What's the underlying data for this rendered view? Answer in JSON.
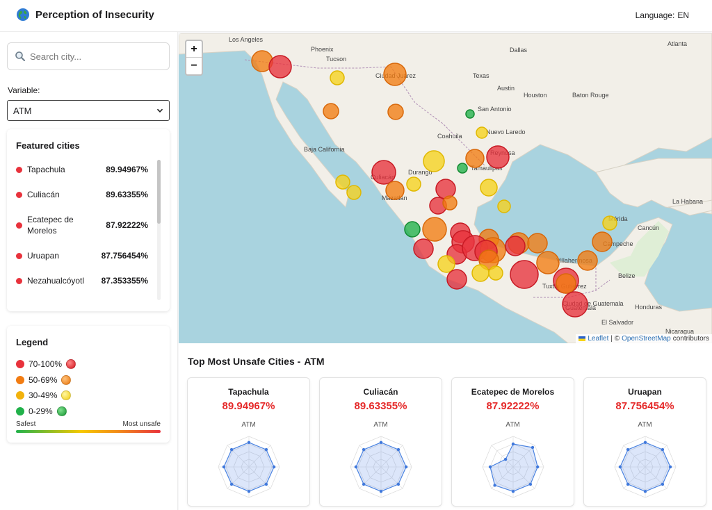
{
  "header": {
    "title": "Perception of Insecurity",
    "language_label": "Language:",
    "language_value": "EN"
  },
  "sidebar": {
    "search_placeholder": "Search city...",
    "variable_label": "Variable:",
    "variable_value": "ATM",
    "featured_title": "Featured cities",
    "featured": [
      {
        "name": "Tapachula",
        "value": "89.94967%",
        "color": "#e8323c"
      },
      {
        "name": "Culiacán",
        "value": "89.63355%",
        "color": "#e8323c"
      },
      {
        "name": "Ecatepec de Morelos",
        "value": "87.92222%",
        "color": "#e8323c"
      },
      {
        "name": "Uruapan",
        "value": "87.756454%",
        "color": "#e8323c"
      },
      {
        "name": "Nezahualcóyotl",
        "value": "87.353355%",
        "color": "#e8323c"
      }
    ],
    "legend_title": "Legend",
    "legend": [
      {
        "label": "70-100%",
        "color": "#e8323c"
      },
      {
        "label": "50-69%",
        "color": "#f27c12"
      },
      {
        "label": "30-49%",
        "color": "#f2b20c"
      },
      {
        "label": "0-29%",
        "color": "#21b14a"
      }
    ],
    "gradient_low": "Safest",
    "gradient_high": "Most unsafe"
  },
  "map": {
    "zoom_in": "+",
    "zoom_out": "−",
    "attribution_leaflet": "Leaflet",
    "attribution_sep": "| ©",
    "attribution_osm": "OpenStreetMap",
    "attribution_contributors": "contributors",
    "labels": [
      {
        "text": "Los Angeles"
      },
      {
        "text": "Phoenix"
      },
      {
        "text": "Tucson"
      },
      {
        "text": "Dallas"
      },
      {
        "text": "Atlanta"
      },
      {
        "text": "Ciudad Juárez"
      },
      {
        "text": "Austin"
      },
      {
        "text": "Houston"
      },
      {
        "text": "Baton Rouge"
      },
      {
        "text": "San Antonio"
      },
      {
        "text": "Nuevo Laredo"
      },
      {
        "text": "Reynosa"
      },
      {
        "text": "Culiacán"
      },
      {
        "text": "Mérida"
      },
      {
        "text": "Cancún"
      },
      {
        "text": "Campeche"
      },
      {
        "text": "Villahermosa"
      },
      {
        "text": "Belize"
      },
      {
        "text": "Guatemala"
      },
      {
        "text": "Honduras"
      },
      {
        "text": "El Salvador"
      },
      {
        "text": "La Habana"
      },
      {
        "text": "Texas"
      },
      {
        "text": "Coahuila"
      },
      {
        "text": "Tamaulipas"
      },
      {
        "text": "Durango"
      },
      {
        "text": "Baja California"
      },
      {
        "text": "Tuxtla Gutiérrez"
      },
      {
        "text": "Ciudad de Guatemala"
      },
      {
        "text": "Mazatlán"
      },
      {
        "text": "Nicaragua"
      }
    ],
    "markers": [
      {
        "level": "orange"
      },
      {
        "level": "red"
      },
      {
        "level": "yellow"
      },
      {
        "level": "orange"
      },
      {
        "level": "orange"
      },
      {
        "level": "orange"
      },
      {
        "level": "green"
      },
      {
        "level": "yellow"
      },
      {
        "level": "red"
      },
      {
        "level": "yellow"
      },
      {
        "level": "orange"
      },
      {
        "level": "green"
      },
      {
        "level": "red"
      },
      {
        "level": "orange"
      },
      {
        "level": "yellow"
      },
      {
        "level": "yellow"
      },
      {
        "level": "red"
      },
      {
        "level": "yellow"
      },
      {
        "level": "yellow"
      },
      {
        "level": "red"
      },
      {
        "level": "orange"
      },
      {
        "level": "yellow"
      },
      {
        "level": "green"
      },
      {
        "level": "orange"
      },
      {
        "level": "red"
      },
      {
        "level": "red"
      },
      {
        "level": "red"
      },
      {
        "level": "orange"
      },
      {
        "level": "red"
      },
      {
        "level": "orange"
      },
      {
        "level": "orange"
      },
      {
        "level": "red"
      },
      {
        "level": "red"
      },
      {
        "level": "red"
      },
      {
        "level": "orange"
      },
      {
        "level": "orange"
      },
      {
        "level": "orange"
      },
      {
        "level": "yellow"
      },
      {
        "level": "red"
      },
      {
        "level": "yellow"
      },
      {
        "level": "red"
      },
      {
        "level": "orange"
      },
      {
        "level": "red"
      },
      {
        "level": "yellow"
      },
      {
        "level": "orange"
      },
      {
        "level": "orange"
      },
      {
        "level": "yellow"
      },
      {
        "level": "red"
      }
    ]
  },
  "top_section": {
    "title": "Top Most Unsafe Cities -",
    "variable": "ATM",
    "cities": [
      {
        "name": "Tapachula",
        "value": "89.94967%",
        "variable": "ATM"
      },
      {
        "name": "Culiacán",
        "value": "89.63355%",
        "variable": "ATM"
      },
      {
        "name": "Ecatepec de Morelos",
        "value": "87.92222%",
        "variable": "ATM"
      },
      {
        "name": "Uruapan",
        "value": "87.756454%",
        "variable": "ATM"
      }
    ]
  },
  "colors": {
    "red": "#e8323c",
    "orange": "#f27c12",
    "yellow": "#f6d21e",
    "green": "#21b14a",
    "value_red": "#e52a2a"
  }
}
